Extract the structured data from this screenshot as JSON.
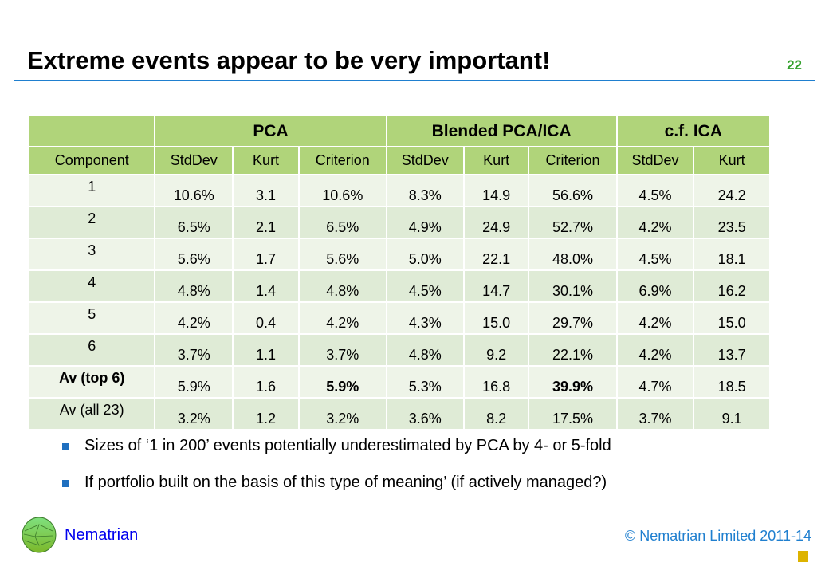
{
  "title": "Extreme events appear to be very important!",
  "page_number": "22",
  "table": {
    "groups": [
      "PCA",
      "Blended PCA/ICA",
      "c.f. ICA"
    ],
    "columns": [
      "Component",
      "StdDev",
      "Kurt",
      "Criterion",
      "StdDev",
      "Kurt",
      "Criterion",
      "StdDev",
      "Kurt"
    ],
    "rows": [
      [
        "1",
        "10.6%",
        "3.1",
        "10.6%",
        "8.3%",
        "14.9",
        "56.6%",
        "4.5%",
        "24.2"
      ],
      [
        "2",
        "6.5%",
        "2.1",
        "6.5%",
        "4.9%",
        "24.9",
        "52.7%",
        "4.2%",
        "23.5"
      ],
      [
        "3",
        "5.6%",
        "1.7",
        "5.6%",
        "5.0%",
        "22.1",
        "48.0%",
        "4.5%",
        "18.1"
      ],
      [
        "4",
        "4.8%",
        "1.4",
        "4.8%",
        "4.5%",
        "14.7",
        "30.1%",
        "6.9%",
        "16.2"
      ],
      [
        "5",
        "4.2%",
        "0.4",
        "4.2%",
        "4.3%",
        "15.0",
        "29.7%",
        "4.2%",
        "15.0"
      ],
      [
        "6",
        "3.7%",
        "1.1",
        "3.7%",
        "4.8%",
        "9.2",
        "22.1%",
        "4.2%",
        "13.7"
      ],
      [
        "Av (top 6)",
        "5.9%",
        "1.6",
        "5.9%",
        "5.3%",
        "16.8",
        "39.9%",
        "4.7%",
        "18.5"
      ],
      [
        "Av (all 23)",
        "3.2%",
        "1.2",
        "3.2%",
        "3.6%",
        "8.2",
        "17.5%",
        "3.7%",
        "9.1"
      ]
    ]
  },
  "bullets": [
    "Sizes of ‘1 in 200’ events potentially underestimated by PCA by 4- or 5-fold",
    "If portfolio built on the basis of this type of meaning’ (if actively managed?)"
  ],
  "footer": {
    "brand": "Nematrian",
    "copyright": "© Nematrian Limited 2011-14"
  }
}
